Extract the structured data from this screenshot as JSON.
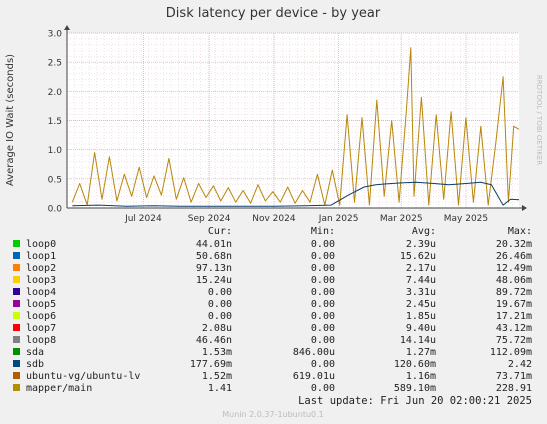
{
  "chart_data": {
    "type": "line",
    "title": "Disk latency per device - by year",
    "ylabel": "Average IO Wait (seconds)",
    "xlabel": "",
    "ylim": [
      0,
      3.0
    ],
    "yticks": [
      {
        "value": 0.0,
        "label": "0.0"
      },
      {
        "value": 0.5,
        "label": "0.5"
      },
      {
        "value": 1.0,
        "label": "1.0"
      },
      {
        "value": 1.5,
        "label": "1.5"
      },
      {
        "value": 2.0,
        "label": "2.0"
      },
      {
        "value": 2.5,
        "label": "2.5"
      },
      {
        "value": 3.0,
        "label": "3.0"
      }
    ],
    "xlim": [
      "2024-04-20",
      "2025-06-20"
    ],
    "xticks": [
      {
        "value": "2024-07-01",
        "label": "Jul 2024"
      },
      {
        "value": "2024-09-01",
        "label": "Sep 2024"
      },
      {
        "value": "2024-11-01",
        "label": "Nov 2024"
      },
      {
        "value": "2025-01-01",
        "label": "Jan 2025"
      },
      {
        "value": "2025-03-01",
        "label": "Mar 2025"
      },
      {
        "value": "2025-05-01",
        "label": "May 2025"
      }
    ],
    "grid": true,
    "watermark": "RRDTOOL / TOBI OETIKER",
    "series": [
      {
        "name": "mapper/main",
        "color": "#b8860b",
        "values": [
          [
            "2024-04-25",
            0.1
          ],
          [
            "2024-05-02",
            0.42
          ],
          [
            "2024-05-09",
            0.05
          ],
          [
            "2024-05-16",
            0.95
          ],
          [
            "2024-05-23",
            0.15
          ],
          [
            "2024-05-30",
            0.88
          ],
          [
            "2024-06-06",
            0.12
          ],
          [
            "2024-06-13",
            0.58
          ],
          [
            "2024-06-20",
            0.2
          ],
          [
            "2024-06-27",
            0.7
          ],
          [
            "2024-07-04",
            0.18
          ],
          [
            "2024-07-11",
            0.55
          ],
          [
            "2024-07-18",
            0.22
          ],
          [
            "2024-07-25",
            0.85
          ],
          [
            "2024-08-01",
            0.15
          ],
          [
            "2024-08-08",
            0.52
          ],
          [
            "2024-08-15",
            0.1
          ],
          [
            "2024-08-22",
            0.42
          ],
          [
            "2024-08-29",
            0.18
          ],
          [
            "2024-09-05",
            0.38
          ],
          [
            "2024-09-12",
            0.12
          ],
          [
            "2024-09-19",
            0.35
          ],
          [
            "2024-09-26",
            0.1
          ],
          [
            "2024-10-03",
            0.3
          ],
          [
            "2024-10-10",
            0.08
          ],
          [
            "2024-10-17",
            0.4
          ],
          [
            "2024-10-24",
            0.12
          ],
          [
            "2024-10-31",
            0.28
          ],
          [
            "2024-11-07",
            0.1
          ],
          [
            "2024-11-14",
            0.36
          ],
          [
            "2024-11-21",
            0.08
          ],
          [
            "2024-11-28",
            0.3
          ],
          [
            "2024-12-05",
            0.1
          ],
          [
            "2024-12-12",
            0.58
          ],
          [
            "2024-12-19",
            0.05
          ],
          [
            "2024-12-26",
            0.65
          ],
          [
            "2025-01-02",
            0.05
          ],
          [
            "2025-01-09",
            1.6
          ],
          [
            "2025-01-16",
            0.1
          ],
          [
            "2025-01-23",
            1.55
          ],
          [
            "2025-01-30",
            0.05
          ],
          [
            "2025-02-06",
            1.85
          ],
          [
            "2025-02-13",
            0.2
          ],
          [
            "2025-02-20",
            1.5
          ],
          [
            "2025-02-27",
            0.1
          ],
          [
            "2025-03-06",
            1.7
          ],
          [
            "2025-03-10",
            2.75
          ],
          [
            "2025-03-13",
            0.2
          ],
          [
            "2025-03-20",
            1.9
          ],
          [
            "2025-03-27",
            0.05
          ],
          [
            "2025-04-03",
            1.6
          ],
          [
            "2025-04-10",
            0.15
          ],
          [
            "2025-04-17",
            1.65
          ],
          [
            "2025-04-24",
            0.05
          ],
          [
            "2025-05-01",
            1.55
          ],
          [
            "2025-05-08",
            0.1
          ],
          [
            "2025-05-15",
            1.4
          ],
          [
            "2025-05-22",
            0.05
          ],
          [
            "2025-05-29",
            1.1
          ],
          [
            "2025-06-05",
            2.25
          ],
          [
            "2025-06-10",
            0.1
          ],
          [
            "2025-06-15",
            1.4
          ],
          [
            "2025-06-20",
            1.35
          ]
        ]
      },
      {
        "name": "sdb",
        "color": "#0b3d6b",
        "values": [
          [
            "2024-04-25",
            0.04
          ],
          [
            "2024-05-20",
            0.05
          ],
          [
            "2024-06-15",
            0.03
          ],
          [
            "2024-07-10",
            0.04
          ],
          [
            "2024-08-05",
            0.03
          ],
          [
            "2024-09-01",
            0.03
          ],
          [
            "2024-10-01",
            0.03
          ],
          [
            "2024-11-01",
            0.03
          ],
          [
            "2024-12-01",
            0.04
          ],
          [
            "2024-12-25",
            0.05
          ],
          [
            "2025-01-10",
            0.22
          ],
          [
            "2025-01-25",
            0.36
          ],
          [
            "2025-02-05",
            0.4
          ],
          [
            "2025-02-20",
            0.42
          ],
          [
            "2025-03-01",
            0.43
          ],
          [
            "2025-03-15",
            0.44
          ],
          [
            "2025-04-01",
            0.42
          ],
          [
            "2025-04-15",
            0.4
          ],
          [
            "2025-05-01",
            0.42
          ],
          [
            "2025-05-15",
            0.44
          ],
          [
            "2025-05-25",
            0.4
          ],
          [
            "2025-06-05",
            0.05
          ],
          [
            "2025-06-12",
            0.15
          ],
          [
            "2025-06-20",
            0.14
          ]
        ]
      }
    ]
  },
  "legend": {
    "headers": {
      "cur": "Cur:",
      "min": "Min:",
      "avg": "Avg:",
      "max": "Max:"
    },
    "rows": [
      {
        "name": "loop0",
        "color": "#00cc00",
        "cur": "44.01n",
        "min": "0.00",
        "avg": "2.39u",
        "max": "20.32m"
      },
      {
        "name": "loop1",
        "color": "#0066b3",
        "cur": "50.68n",
        "min": "0.00",
        "avg": "15.62u",
        "max": "26.46m"
      },
      {
        "name": "loop2",
        "color": "#ff8000",
        "cur": "97.13n",
        "min": "0.00",
        "avg": "2.17u",
        "max": "12.49m"
      },
      {
        "name": "loop3",
        "color": "#ffcc00",
        "cur": "15.24u",
        "min": "0.00",
        "avg": "7.44u",
        "max": "48.06m"
      },
      {
        "name": "loop4",
        "color": "#330099",
        "cur": "0.00",
        "min": "0.00",
        "avg": "3.31u",
        "max": "89.72m"
      },
      {
        "name": "loop5",
        "color": "#990099",
        "cur": "0.00",
        "min": "0.00",
        "avg": "2.45u",
        "max": "19.67m"
      },
      {
        "name": "loop6",
        "color": "#ccff00",
        "cur": "0.00",
        "min": "0.00",
        "avg": "1.85u",
        "max": "17.21m"
      },
      {
        "name": "loop7",
        "color": "#ff0000",
        "cur": "2.08u",
        "min": "0.00",
        "avg": "9.40u",
        "max": "43.12m"
      },
      {
        "name": "loop8",
        "color": "#808080",
        "cur": "46.46n",
        "min": "0.00",
        "avg": "14.14u",
        "max": "75.72m"
      },
      {
        "name": "sda",
        "color": "#008f00",
        "cur": "1.53m",
        "min": "846.00u",
        "avg": "1.27m",
        "max": "112.09m"
      },
      {
        "name": "sdb",
        "color": "#00487d",
        "cur": "177.69m",
        "min": "0.00",
        "avg": "120.60m",
        "max": "2.42"
      },
      {
        "name": "ubuntu-vg/ubuntu-lv",
        "color": "#b35a00",
        "cur": "1.52m",
        "min": "619.01u",
        "avg": "1.16m",
        "max": "73.71m"
      },
      {
        "name": "mapper/main",
        "color": "#b38f00",
        "cur": "1.41",
        "min": "0.00",
        "avg": "589.10m",
        "max": "228.91"
      }
    ]
  },
  "last_update": "Last update: Fri Jun 20 02:00:21 2025",
  "footer": "Munin 2.0.37-1ubuntu0.1"
}
